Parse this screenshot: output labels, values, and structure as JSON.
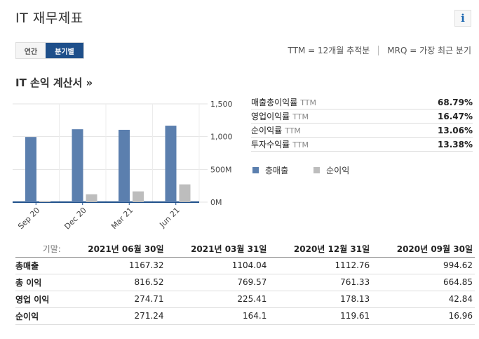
{
  "header": {
    "title": "IT 재무제표",
    "info_icon": "info-icon"
  },
  "period_toggle": {
    "annual_label": "연간",
    "quarterly_label": "분기별"
  },
  "legend_note": {
    "ttm": "TTM = 12개월 추적분",
    "mrq": "MRQ = 가장 최근 분기"
  },
  "income_section": {
    "title": "IT 손익 계산서 »"
  },
  "ratios": [
    {
      "label": "매출총이익률",
      "ttm": "TTM",
      "value": "68.79%"
    },
    {
      "label": "영업이익률",
      "ttm": "TTM",
      "value": "16.47%"
    },
    {
      "label": "순이익률",
      "ttm": "TTM",
      "value": "13.06%"
    },
    {
      "label": "투자수익률",
      "ttm": "TTM",
      "value": "13.38%"
    }
  ],
  "chart_legend": {
    "revenue": "총매출",
    "net_income": "순이익"
  },
  "colors": {
    "revenue": "#5b7fae",
    "net_income": "#bdbdbd",
    "toggle_active": "#1e4f8a",
    "info": "#1a66b0"
  },
  "chart_data": {
    "type": "bar",
    "categories": [
      "Sep 20",
      "Dec 20",
      "Mar 21",
      "Jun 21"
    ],
    "series": [
      {
        "name": "총매출",
        "values": [
          994.62,
          1112.76,
          1104.04,
          1167.32
        ]
      },
      {
        "name": "순이익",
        "values": [
          16.96,
          119.61,
          164.1,
          271.24
        ]
      }
    ],
    "y_ticks": [
      "1,500",
      "1,000",
      "500M",
      "0M"
    ],
    "y_tick_values": [
      1500,
      1000,
      500,
      0
    ],
    "ylim": [
      0,
      1500
    ],
    "title": "",
    "xlabel": "",
    "ylabel": ""
  },
  "table": {
    "header_label": "기말:",
    "columns": [
      "2021년 06월 30일",
      "2021년 03월 31일",
      "2020년 12월 31일",
      "2020년 09월 30일"
    ],
    "rows": [
      {
        "label": "총매출",
        "values": [
          "1167.32",
          "1104.04",
          "1112.76",
          "994.62"
        ]
      },
      {
        "label": "총 이익",
        "values": [
          "816.52",
          "769.57",
          "761.33",
          "664.85"
        ]
      },
      {
        "label": "영업 이익",
        "values": [
          "274.71",
          "225.41",
          "178.13",
          "42.84"
        ]
      },
      {
        "label": "순이익",
        "values": [
          "271.24",
          "164.1",
          "119.61",
          "16.96"
        ]
      }
    ]
  }
}
